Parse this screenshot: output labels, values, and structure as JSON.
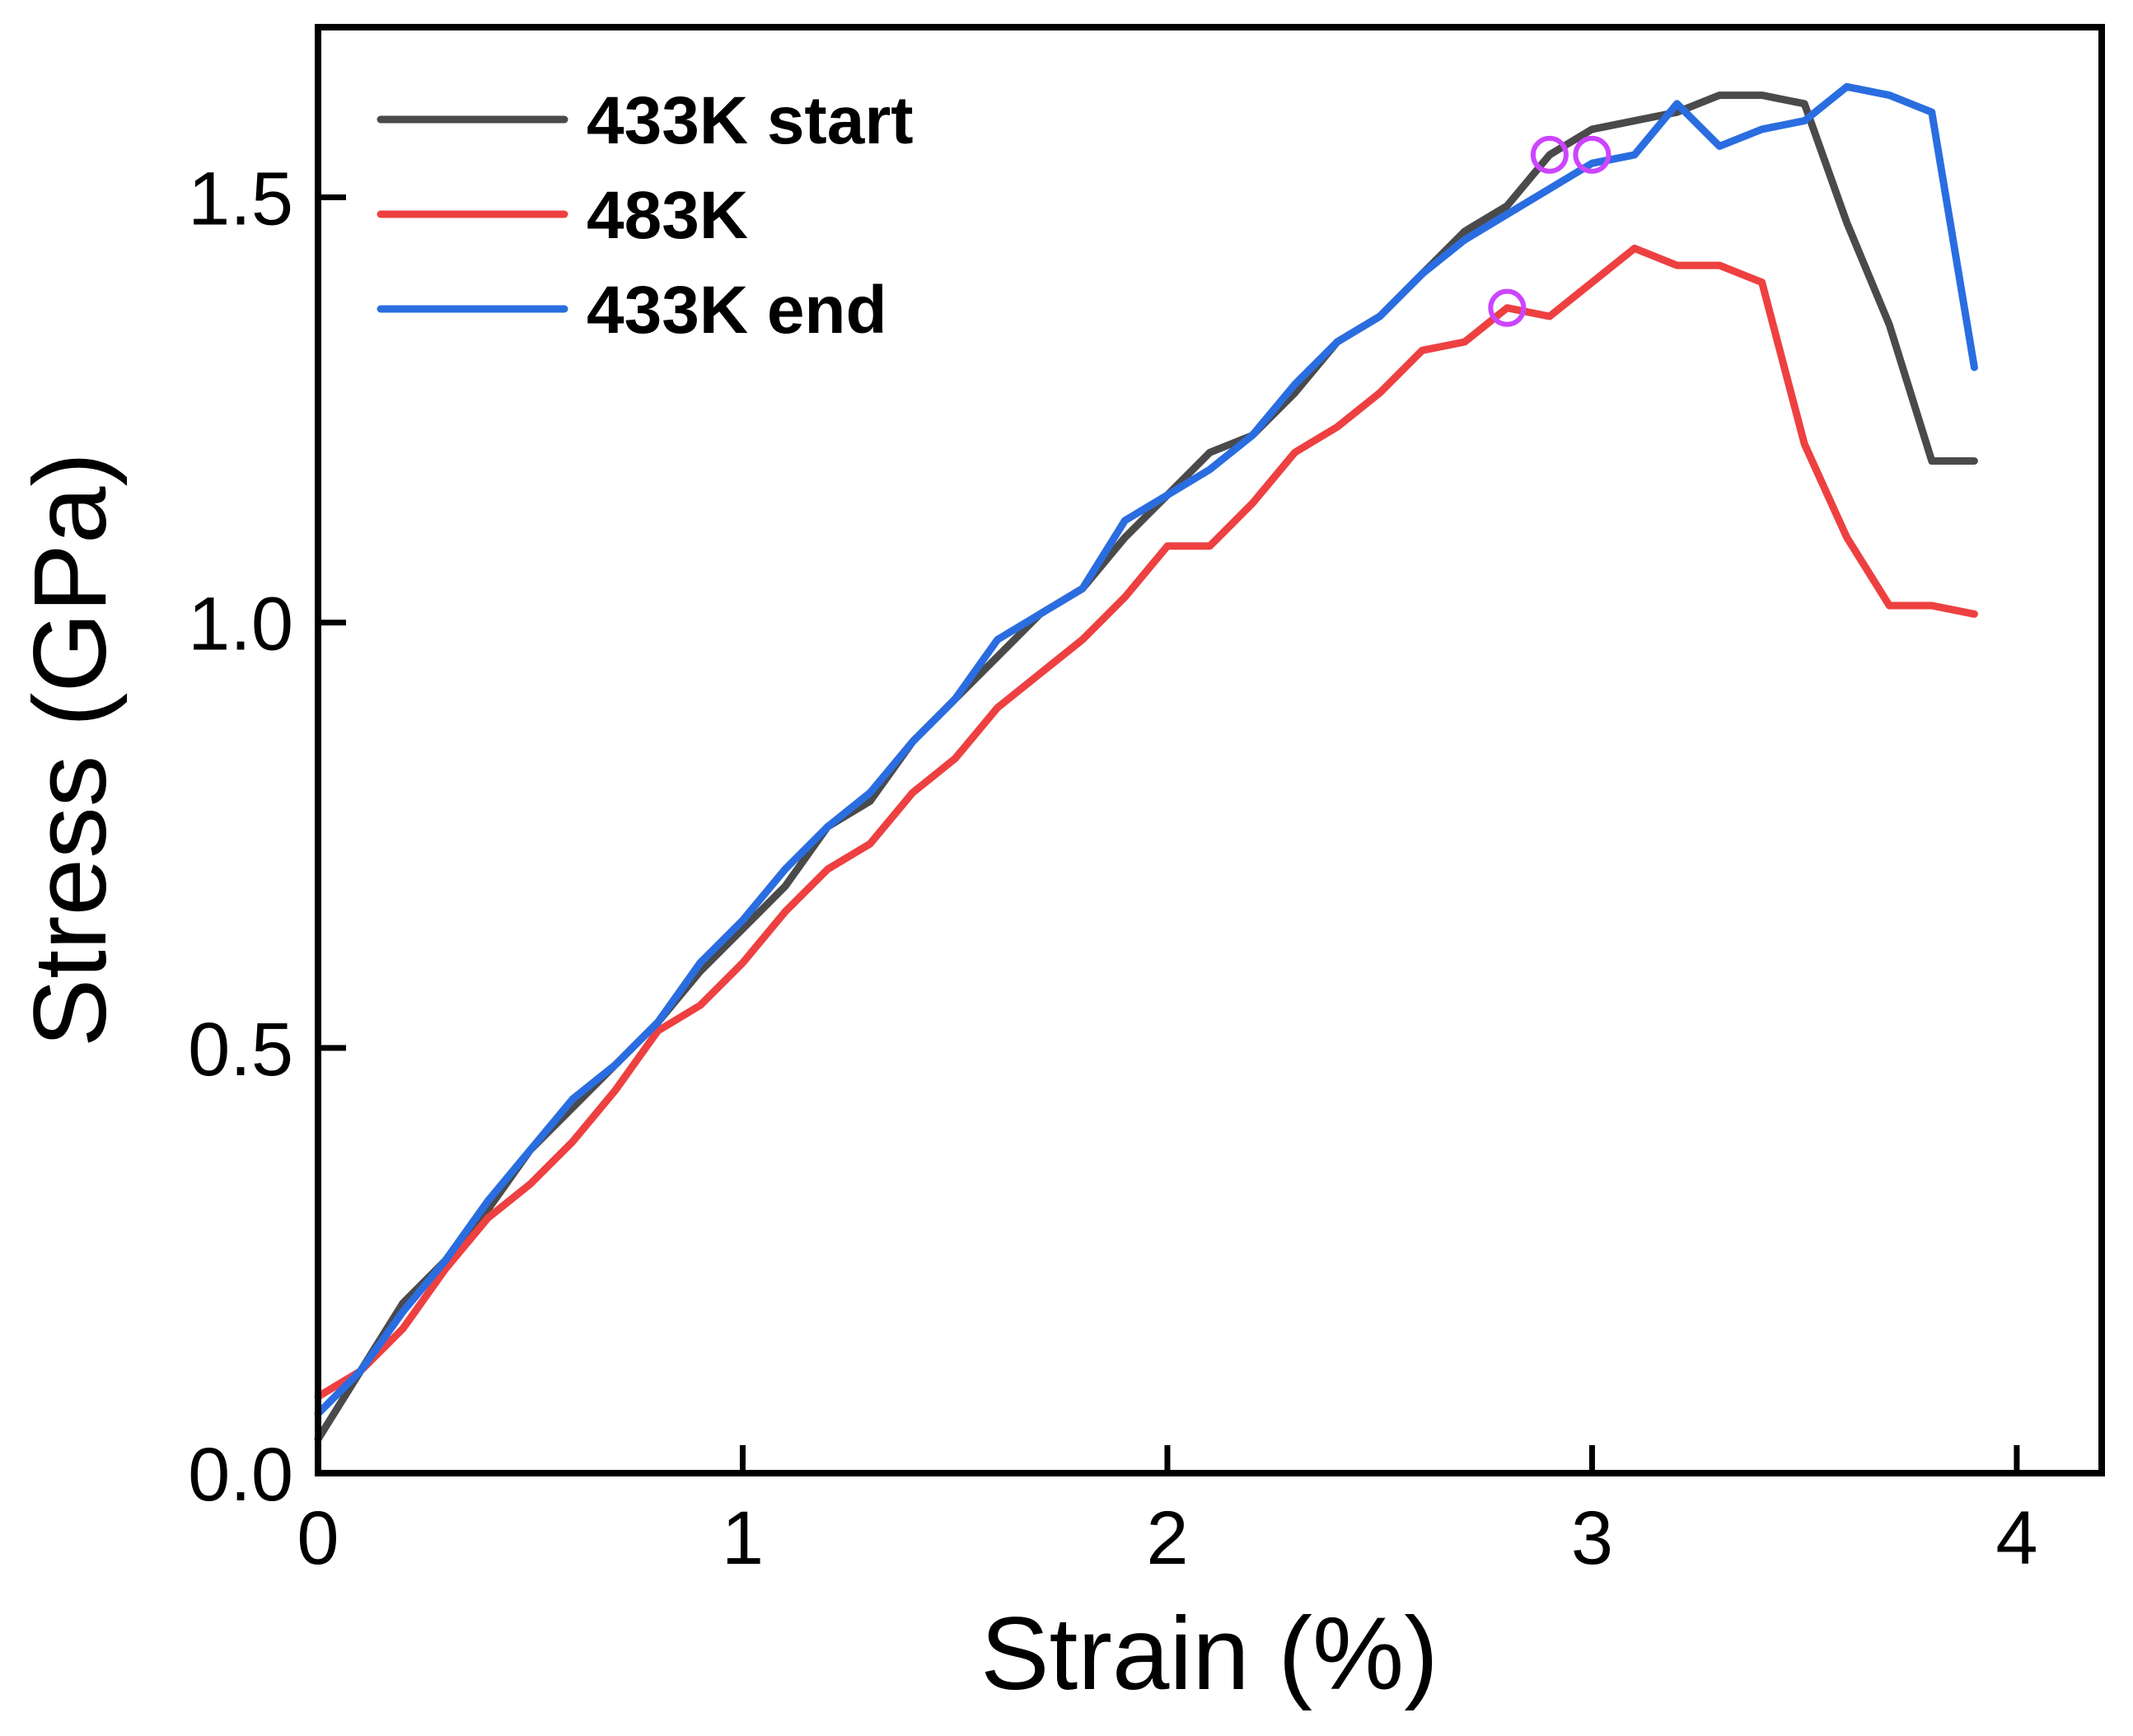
{
  "chart_data": {
    "type": "line",
    "title": "",
    "xlabel": "Strain (%)",
    "ylabel": "Stress (GPa)",
    "xlim": [
      0,
      4.2
    ],
    "ylim": [
      0,
      1.7
    ],
    "xticks": [
      0,
      1,
      2,
      3,
      4
    ],
    "xtick_labels": [
      "0",
      "1",
      "2",
      "3",
      "4"
    ],
    "yticks": [
      0,
      0.5,
      1.0,
      1.5
    ],
    "ytick_labels": [
      "0.0",
      "0.5",
      "1.0",
      "1.5"
    ],
    "grid": false,
    "legend_position": "top-left",
    "series": [
      {
        "name": "433K start",
        "color": "#4a4a4a",
        "x": [
          0,
          0.1,
          0.2,
          0.3,
          0.4,
          0.5,
          0.6,
          0.7,
          0.8,
          0.9,
          1.0,
          1.1,
          1.2,
          1.3,
          1.4,
          1.5,
          1.6,
          1.7,
          1.8,
          1.9,
          2.0,
          2.1,
          2.2,
          2.3,
          2.4,
          2.5,
          2.6,
          2.7,
          2.8,
          2.9,
          3.0,
          3.1,
          3.2,
          3.3,
          3.4,
          3.5,
          3.6,
          3.7,
          3.8,
          3.9
        ],
        "y": [
          0.04,
          0.12,
          0.2,
          0.25,
          0.31,
          0.38,
          0.43,
          0.48,
          0.53,
          0.59,
          0.64,
          0.69,
          0.76,
          0.79,
          0.86,
          0.91,
          0.96,
          1.01,
          1.04,
          1.1,
          1.15,
          1.2,
          1.22,
          1.27,
          1.33,
          1.36,
          1.41,
          1.46,
          1.49,
          1.55,
          1.58,
          1.59,
          1.6,
          1.62,
          1.62,
          1.61,
          1.47,
          1.35,
          1.19,
          1.19
        ]
      },
      {
        "name": "483K",
        "color": "#ee4040",
        "x": [
          0,
          0.1,
          0.2,
          0.3,
          0.4,
          0.5,
          0.6,
          0.7,
          0.8,
          0.9,
          1.0,
          1.1,
          1.2,
          1.3,
          1.4,
          1.5,
          1.6,
          1.7,
          1.8,
          1.9,
          2.0,
          2.1,
          2.2,
          2.3,
          2.4,
          2.5,
          2.6,
          2.7,
          2.8,
          2.9,
          3.0,
          3.1,
          3.2,
          3.3,
          3.4,
          3.5,
          3.6,
          3.7,
          3.8,
          3.9
        ],
        "y": [
          0.09,
          0.12,
          0.17,
          0.24,
          0.3,
          0.34,
          0.39,
          0.45,
          0.52,
          0.55,
          0.6,
          0.66,
          0.71,
          0.74,
          0.8,
          0.84,
          0.9,
          0.94,
          0.98,
          1.03,
          1.09,
          1.09,
          1.14,
          1.2,
          1.23,
          1.27,
          1.32,
          1.33,
          1.37,
          1.36,
          1.4,
          1.44,
          1.42,
          1.42,
          1.4,
          1.21,
          1.1,
          1.02,
          1.02,
          1.01
        ]
      },
      {
        "name": "433K end",
        "color": "#2a6de0",
        "x": [
          0,
          0.1,
          0.2,
          0.3,
          0.4,
          0.5,
          0.6,
          0.7,
          0.8,
          0.9,
          1.0,
          1.1,
          1.2,
          1.3,
          1.4,
          1.5,
          1.6,
          1.7,
          1.8,
          1.9,
          2.0,
          2.1,
          2.2,
          2.3,
          2.4,
          2.5,
          2.6,
          2.7,
          2.8,
          2.9,
          3.0,
          3.1,
          3.2,
          3.3,
          3.4,
          3.5,
          3.6,
          3.7,
          3.8,
          3.9
        ],
        "y": [
          0.07,
          0.12,
          0.19,
          0.25,
          0.32,
          0.38,
          0.44,
          0.48,
          0.53,
          0.6,
          0.65,
          0.71,
          0.76,
          0.8,
          0.86,
          0.91,
          0.98,
          1.01,
          1.04,
          1.12,
          1.15,
          1.18,
          1.22,
          1.28,
          1.33,
          1.36,
          1.41,
          1.45,
          1.48,
          1.51,
          1.54,
          1.55,
          1.61,
          1.56,
          1.58,
          1.59,
          1.63,
          1.62,
          1.6,
          1.3
        ]
      }
    ],
    "annotations": [
      {
        "type": "circle-marker",
        "color": "#cc44ff",
        "x": 2.9,
        "y": 1.55
      },
      {
        "type": "circle-marker",
        "color": "#cc44ff",
        "x": 3.0,
        "y": 1.55
      },
      {
        "type": "circle-marker",
        "color": "#cc44ff",
        "x": 2.8,
        "y": 1.37
      }
    ]
  }
}
